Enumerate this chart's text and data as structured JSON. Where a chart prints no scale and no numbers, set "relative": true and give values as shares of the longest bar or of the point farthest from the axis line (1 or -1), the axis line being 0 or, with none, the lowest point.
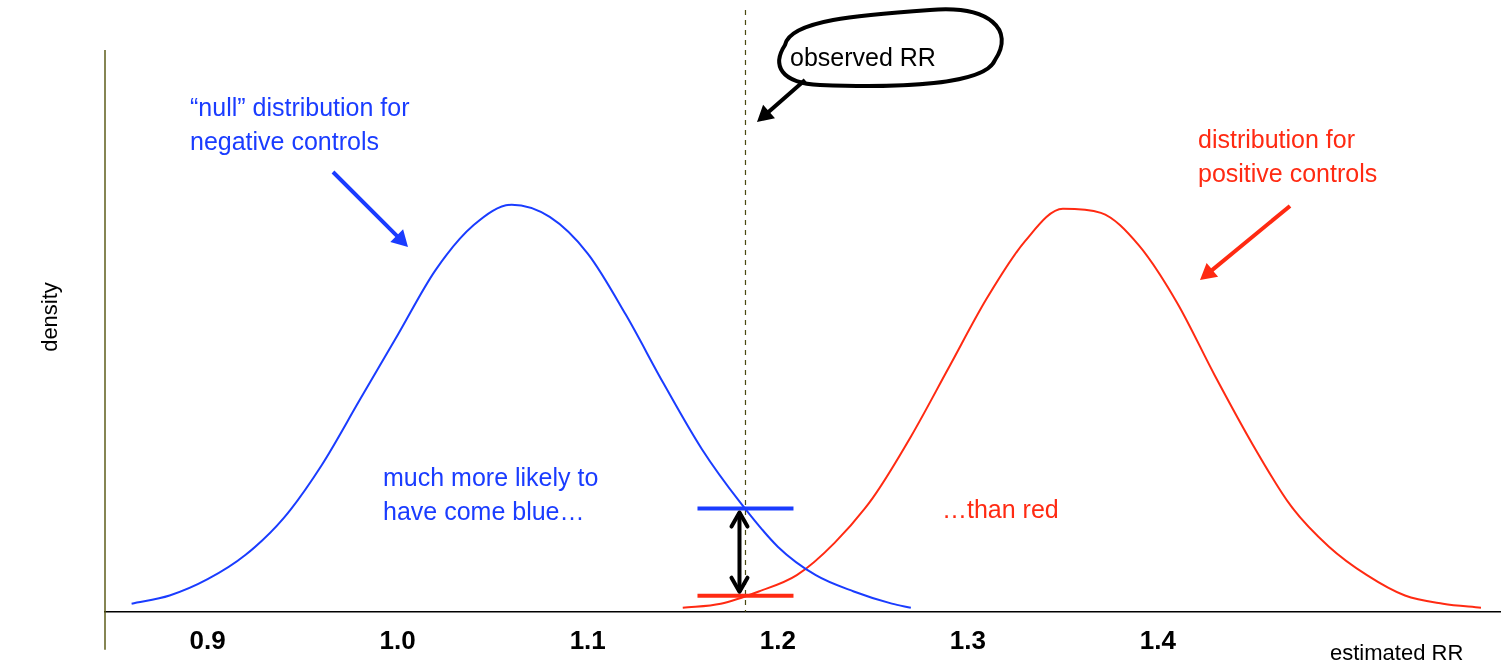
{
  "chart_data": {
    "type": "line",
    "relative": true,
    "xlabel": "estimated RR",
    "ylabel": "density",
    "xlim": [
      0.846,
      1.58
    ],
    "xticks": [
      {
        "value": 0.9,
        "label": "0.9"
      },
      {
        "value": 1.0,
        "label": "1.0"
      },
      {
        "value": 1.1,
        "label": "1.1"
      },
      {
        "value": 1.2,
        "label": "1.2"
      },
      {
        "value": 1.3,
        "label": "1.3"
      },
      {
        "value": 1.4,
        "label": "1.4"
      }
    ],
    "series": [
      {
        "color": "#1a3cff",
        "x": [
          0.86,
          0.88,
          0.9,
          0.92,
          0.94,
          0.96,
          0.98,
          1.0,
          1.02,
          1.04,
          1.06,
          1.08,
          1.1,
          1.12,
          1.14,
          1.16,
          1.18,
          1.2,
          1.22,
          1.24,
          1.26,
          1.27
        ],
        "values": [
          0.02,
          0.04,
          0.08,
          0.14,
          0.23,
          0.36,
          0.52,
          0.68,
          0.84,
          0.95,
          1.0,
          0.97,
          0.88,
          0.73,
          0.56,
          0.4,
          0.27,
          0.16,
          0.09,
          0.05,
          0.02,
          0.01
        ]
      },
      {
        "color": "#ff2a12",
        "x": [
          1.15,
          1.17,
          1.19,
          1.21,
          1.23,
          1.25,
          1.27,
          1.29,
          1.31,
          1.33,
          1.35,
          1.37,
          1.39,
          1.41,
          1.43,
          1.45,
          1.47,
          1.49,
          1.51,
          1.53,
          1.55,
          1.57
        ],
        "values": [
          0.01,
          0.02,
          0.05,
          0.09,
          0.17,
          0.28,
          0.43,
          0.6,
          0.77,
          0.91,
          0.99,
          0.98,
          0.9,
          0.76,
          0.58,
          0.41,
          0.26,
          0.16,
          0.09,
          0.04,
          0.02,
          0.01
        ]
      }
    ],
    "ref_lines": [
      {
        "axis": "x",
        "value": 1.183,
        "color": "#4a4a10",
        "line_style": "dashed"
      }
    ],
    "annotations": [
      "“null” distribution for\nnegative controls",
      "distribution for\npositive controls",
      "much more likely to\nhave come blue…",
      "…than red",
      "observed RR"
    ],
    "grid": false,
    "legend": false,
    "marker": "none",
    "line_style": "solid"
  }
}
